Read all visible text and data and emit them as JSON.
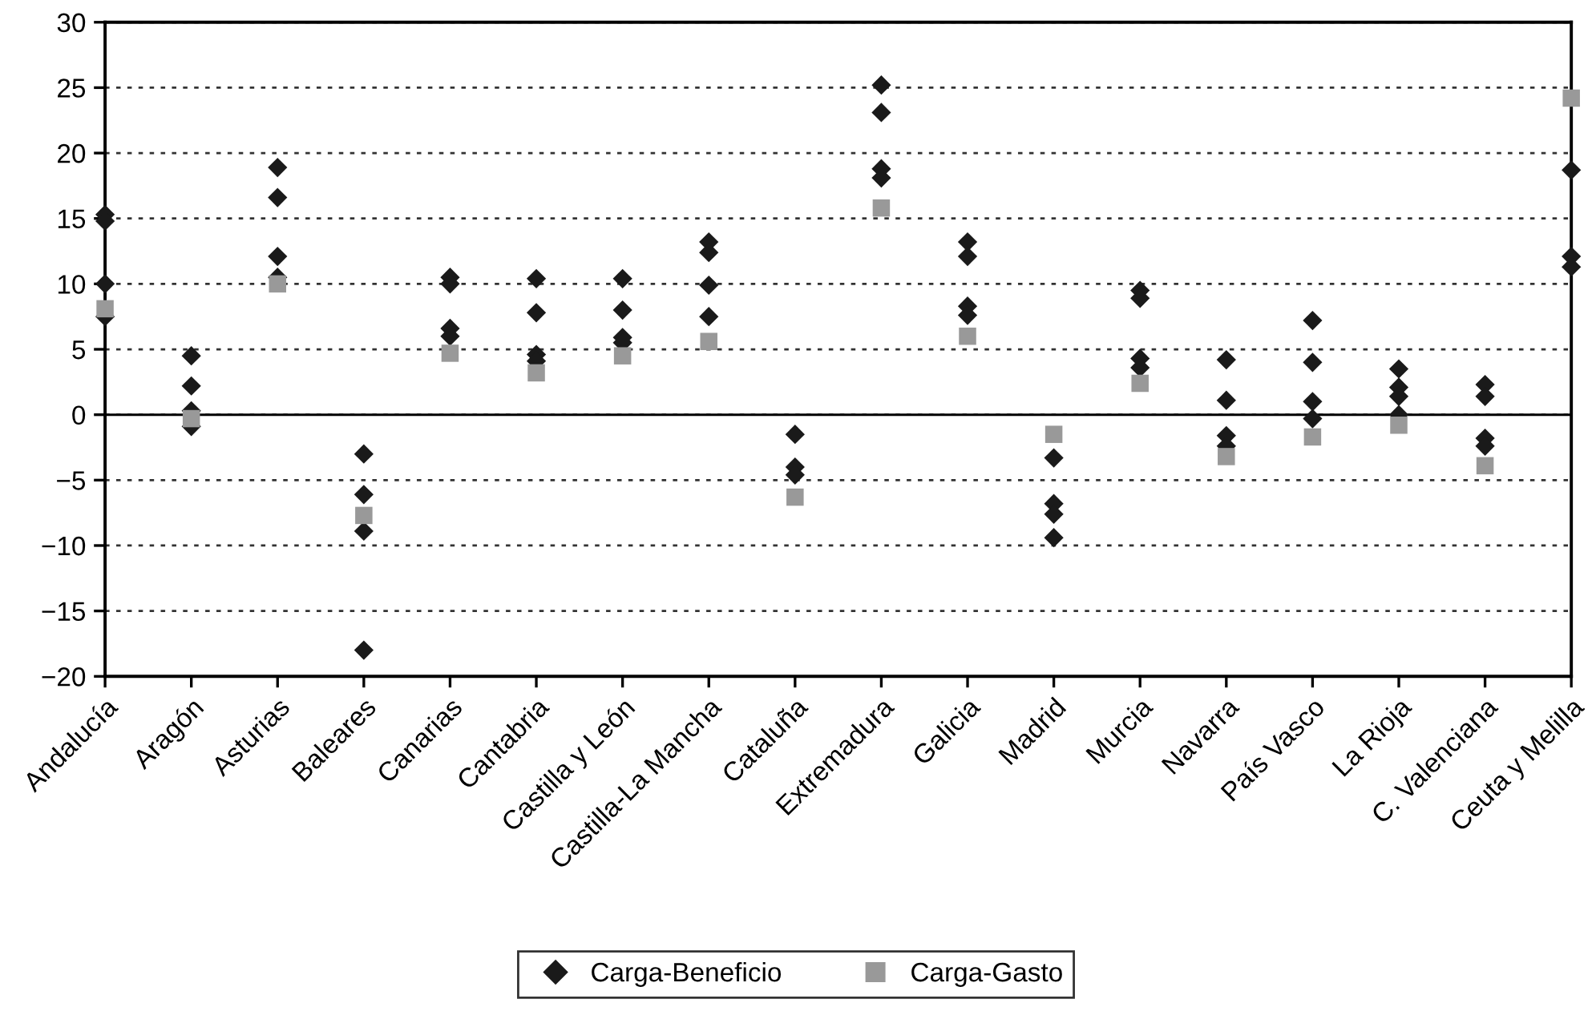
{
  "chart_data": {
    "type": "scatter",
    "categories": [
      "Andalucía",
      "Aragón",
      "Asturias",
      "Baleares",
      "Canarias",
      "Cantabria",
      "Castilla y León",
      "Castilla-La Mancha",
      "Cataluña",
      "Extremadura",
      "Galicia",
      "Madrid",
      "Murcia",
      "Navarra",
      "País Vasco",
      "La Rioja",
      "C. Valenciana",
      "Ceuta y Melilla"
    ],
    "series": [
      {
        "name": "Carga-Beneficio",
        "color": "#1a1a1a",
        "marker": "diamond",
        "x": [
          "Andalucía",
          "Andalucía",
          "Andalucía",
          "Andalucía",
          "Aragón",
          "Aragón",
          "Aragón",
          "Aragón",
          "Asturias",
          "Asturias",
          "Asturias",
          "Asturias",
          "Baleares",
          "Baleares",
          "Baleares",
          "Baleares",
          "Canarias",
          "Canarias",
          "Canarias",
          "Canarias",
          "Cantabria",
          "Cantabria",
          "Cantabria",
          "Cantabria",
          "Castilla y León",
          "Castilla y León",
          "Castilla y León",
          "Castilla y León",
          "Castilla-La Mancha",
          "Castilla-La Mancha",
          "Castilla-La Mancha",
          "Castilla-La Mancha",
          "Cataluña",
          "Cataluña",
          "Cataluña",
          "Extremadura",
          "Extremadura",
          "Extremadura",
          "Extremadura",
          "Galicia",
          "Galicia",
          "Galicia",
          "Galicia",
          "Madrid",
          "Madrid",
          "Madrid",
          "Madrid",
          "Murcia",
          "Murcia",
          "Murcia",
          "Murcia",
          "Navarra",
          "Navarra",
          "Navarra",
          "Navarra",
          "País Vasco",
          "País Vasco",
          "País Vasco",
          "País Vasco",
          "La Rioja",
          "La Rioja",
          "La Rioja",
          "La Rioja",
          "C. Valenciana",
          "C. Valenciana",
          "C. Valenciana",
          "C. Valenciana",
          "Ceuta y Melilla",
          "Ceuta y Melilla",
          "Ceuta y Melilla"
        ],
        "values": [
          15.3,
          14.8,
          10,
          7.5,
          4.5,
          2.2,
          0.3,
          -0.9,
          18.9,
          16.6,
          12.1,
          10.5,
          -3,
          -6.1,
          -8.9,
          -18,
          10.5,
          10,
          6.6,
          6,
          10.4,
          7.8,
          4.6,
          4.1,
          10.4,
          8,
          5.9,
          5.5,
          13.2,
          12.4,
          9.9,
          7.5,
          -1.5,
          -4,
          -4.6,
          25.2,
          23.1,
          18.8,
          18.1,
          13.2,
          12.1,
          8.3,
          7.6,
          -3.3,
          -6.8,
          -7.6,
          -9.4,
          9.5,
          8.9,
          4.3,
          3.6,
          4.2,
          1.1,
          -1.6,
          -2.4,
          7.2,
          4,
          1,
          -0.3,
          3.5,
          2.1,
          1.4,
          0,
          2.3,
          1.4,
          -1.8,
          -2.4,
          18.7,
          12.1,
          11.3
        ]
      },
      {
        "name": "Carga-Gasto",
        "color": "#999999",
        "marker": "square",
        "values": [
          8.1,
          -0.3,
          10,
          -7.7,
          4.7,
          3.2,
          4.5,
          5.6,
          -6.3,
          15.8,
          6,
          -1.5,
          2.4,
          -3.2,
          -1.7,
          -0.8,
          -3.9,
          24.2
        ]
      }
    ],
    "ylim": [
      -20,
      30
    ],
    "yticks": [
      -20,
      -15,
      -10,
      -5,
      0,
      5,
      10,
      15,
      20,
      25,
      30
    ],
    "grid": "y",
    "ref_lines": [
      {
        "axis": "y",
        "value": 0,
        "line_style": "solid"
      }
    ],
    "legend": "bottom"
  }
}
